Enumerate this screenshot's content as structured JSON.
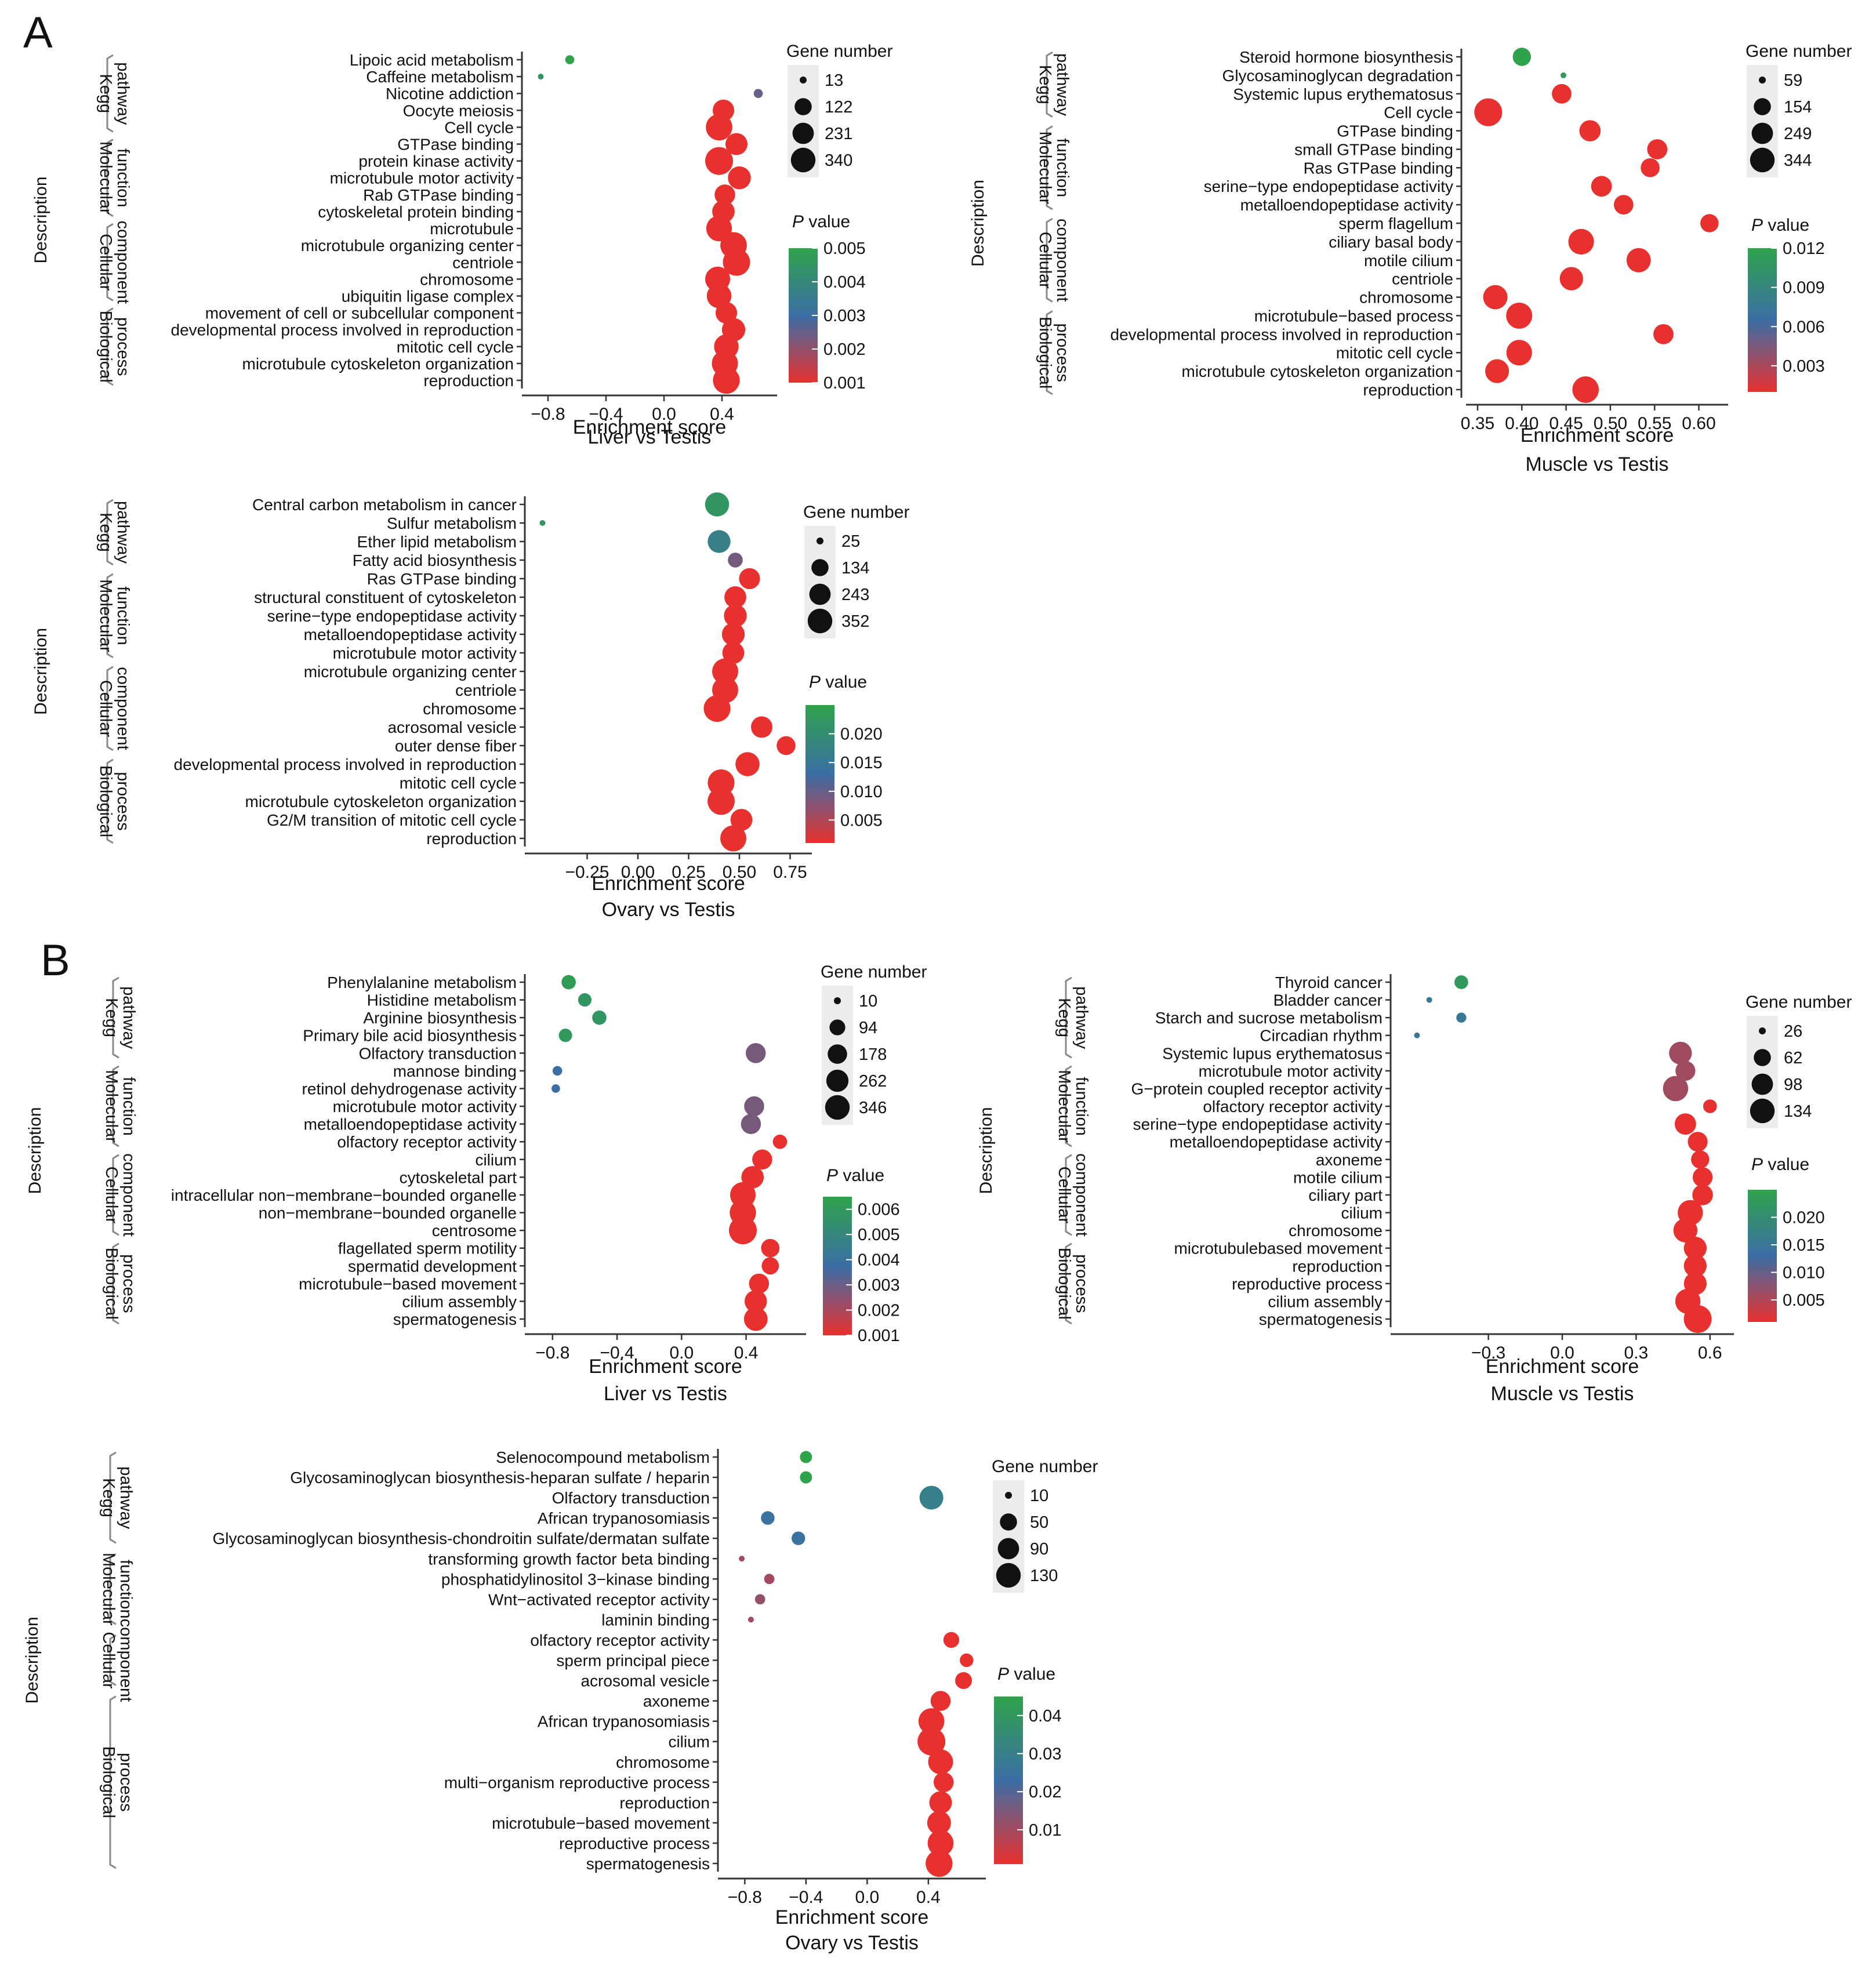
{
  "figure": {
    "section_labels": [
      "A",
      "B"
    ],
    "description_label": "Description",
    "x_axis_label": "Enrichment score",
    "size_legend_title": "Gene number",
    "color_legend_title_italic": "P",
    "color_legend_title_rest": " value",
    "group_names": [
      [
        "Kegg",
        "pathway"
      ],
      [
        "Molecular",
        "function"
      ],
      [
        "Cellular",
        "component"
      ],
      [
        "Biological",
        "process"
      ]
    ],
    "colors": {
      "low_p": "#e8312f",
      "mid_p": "#3b6ea5",
      "high_p": "#2fa34c",
      "axis": "#333333",
      "bracket": "#888888",
      "legend_bg": "#ececec"
    }
  },
  "chart_data": [
    {
      "type": "scatter",
      "id": "A1",
      "title": "Liver vs Testis",
      "xlabel": "Enrichment score",
      "xlim": [
        -0.9,
        0.7
      ],
      "xticks": [
        -0.8,
        -0.4,
        0.0,
        0.4
      ],
      "xtick_labels": [
        "−0.8",
        "−0.4",
        "0.0",
        "0.4"
      ],
      "categories": [
        "Lipoic acid metabolism",
        "Caffeine metabolism",
        "Nicotine addiction",
        "Oocyte meiosis",
        "Cell cycle",
        "GTPase binding",
        "protein kinase activity",
        "microtubule motor activity",
        "Rab GTPase binding",
        "cytoskeletal protein binding",
        "microtubule",
        "microtubule organizing center",
        "centriole",
        "chromosome",
        "ubiquitin ligase complex",
        "movement of cell or subcellular component",
        "developmental process involved in reproduction",
        "mitotic cell cycle",
        "microtubule cytoskeleton organization",
        "reproduction"
      ],
      "groups": [
        5,
        5,
        5,
        5
      ],
      "x": [
        -0.65,
        -0.85,
        0.65,
        0.41,
        0.38,
        0.5,
        0.38,
        0.52,
        0.42,
        0.41,
        0.38,
        0.48,
        0.5,
        0.37,
        0.38,
        0.43,
        0.48,
        0.43,
        0.42,
        0.43
      ],
      "gene_number": [
        20,
        13,
        20,
        180,
        300,
        190,
        340,
        210,
        160,
        200,
        280,
        300,
        320,
        260,
        250,
        180,
        220,
        250,
        290,
        310
      ],
      "p_value": [
        0.005,
        0.0045,
        0.0025,
        0.001,
        0.001,
        0.001,
        0.001,
        0.001,
        0.001,
        0.001,
        0.001,
        0.001,
        0.001,
        0.001,
        0.001,
        0.001,
        0.001,
        0.001,
        0.001,
        0.001
      ],
      "size_legend": {
        "values": [
          13,
          122,
          231,
          340
        ],
        "labels": [
          "13",
          "122",
          "231",
          "340"
        ]
      },
      "color_legend": {
        "range": [
          0.001,
          0.005
        ],
        "ticks": [
          0.005,
          0.004,
          0.003,
          0.002,
          0.001
        ],
        "labels": [
          "0.005",
          "0.004",
          "0.003",
          "0.002",
          "0.001"
        ]
      }
    },
    {
      "type": "scatter",
      "id": "A2",
      "title": "Muscle vs Testis",
      "xlabel": "Enrichment score",
      "xlim": [
        0.35,
        0.62
      ],
      "xticks": [
        0.35,
        0.4,
        0.45,
        0.5,
        0.55,
        0.6
      ],
      "xtick_labels": [
        "0.35",
        "0.40",
        "0.45",
        "0.50",
        "0.55",
        "0.60"
      ],
      "categories": [
        "Steroid hormone biosynthesis",
        "Glycosaminoglycan degradation",
        "Systemic lupus erythematosus",
        "Cell cycle",
        "GTPase binding",
        "small GTPase binding",
        "Ras GTPase binding",
        "serine−type endopeptidase activity",
        "metalloendopeptidase activity",
        "sperm flagellum",
        "ciliary basal body",
        "motile cilium",
        "centriole",
        "chromosome",
        "microtubule−based process",
        "developmental process involved in reproduction",
        "mitotic cell cycle",
        "microtubule cytoskeleton organization",
        "reproduction"
      ],
      "groups": [
        4,
        5,
        5,
        5
      ],
      "x": [
        0.4,
        0.447,
        0.445,
        0.362,
        0.477,
        0.553,
        0.545,
        0.49,
        0.515,
        0.612,
        0.467,
        0.532,
        0.456,
        0.37,
        0.397,
        0.56,
        0.397,
        0.372,
        0.472
      ],
      "gene_number": [
        150,
        59,
        170,
        344,
        200,
        180,
        160,
        190,
        170,
        150,
        290,
        260,
        240,
        260,
        300,
        180,
        290,
        250,
        310
      ],
      "p_value": [
        0.012,
        0.011,
        0.001,
        0.001,
        0.001,
        0.001,
        0.001,
        0.001,
        0.001,
        0.001,
        0.001,
        0.001,
        0.001,
        0.001,
        0.001,
        0.001,
        0.001,
        0.001,
        0.001
      ],
      "size_legend": {
        "values": [
          59,
          154,
          249,
          344
        ],
        "labels": [
          "59",
          "154",
          "249",
          "344"
        ]
      },
      "color_legend": {
        "range": [
          0.001,
          0.012
        ],
        "ticks": [
          0.012,
          0.009,
          0.006,
          0.003
        ],
        "labels": [
          "0.012",
          "0.009",
          "0.006",
          "0.003"
        ]
      }
    },
    {
      "type": "scatter",
      "id": "A3",
      "title": "Ovary vs Testis",
      "xlabel": "Enrichment score",
      "xlim": [
        -0.5,
        0.8
      ],
      "xticks": [
        -0.25,
        0.0,
        0.25,
        0.5,
        0.75
      ],
      "xtick_labels": [
        "−0.25",
        "0.00",
        "0.25",
        "0.50",
        "0.75"
      ],
      "categories": [
        "Central carbon metabolism in cancer",
        "Sulfur metabolism",
        "Ether lipid metabolism",
        "Fatty acid biosynthesis",
        "Ras GTPase binding",
        "structural constituent of cytoskeleton",
        "serine−type endopeptidase activity",
        "metalloendopeptidase activity",
        "microtubule motor activity",
        "microtubule organizing center",
        "centriole",
        "chromosome",
        "acrosomal vesicle",
        "outer dense fiber",
        "developmental process involved in reproduction",
        "mitotic cell cycle",
        "microtubule cytoskeleton organization",
        "G2/M transition of mitotic cell cycle",
        "reproduction"
      ],
      "groups": [
        4,
        5,
        5,
        5
      ],
      "x": [
        0.39,
        -0.47,
        0.4,
        0.48,
        0.55,
        0.48,
        0.48,
        0.47,
        0.47,
        0.43,
        0.43,
        0.39,
        0.61,
        0.73,
        0.54,
        0.41,
        0.41,
        0.51,
        0.47
      ],
      "gene_number": [
        250,
        25,
        220,
        80,
        180,
        200,
        220,
        220,
        200,
        300,
        300,
        320,
        190,
        140,
        250,
        320,
        330,
        200,
        300
      ],
      "p_value": [
        0.022,
        0.022,
        0.017,
        0.009,
        0.001,
        0.001,
        0.001,
        0.001,
        0.001,
        0.001,
        0.001,
        0.001,
        0.001,
        0.001,
        0.001,
        0.001,
        0.001,
        0.001,
        0.001
      ],
      "size_legend": {
        "values": [
          25,
          134,
          243,
          352
        ],
        "labels": [
          "25",
          "134",
          "243",
          "352"
        ]
      },
      "color_legend": {
        "range": [
          0.001,
          0.025
        ],
        "ticks": [
          0.02,
          0.015,
          0.01,
          0.005
        ],
        "labels": [
          "0.020",
          "0.015",
          "0.010",
          "0.005"
        ]
      }
    },
    {
      "type": "scatter",
      "id": "B1",
      "title": "Liver vs Testis",
      "xlabel": "Enrichment score",
      "xlim": [
        -0.9,
        0.7
      ],
      "xticks": [
        -0.8,
        -0.4,
        0.0,
        0.4
      ],
      "xtick_labels": [
        "−0.8",
        "−0.4",
        "0.0",
        "0.4"
      ],
      "categories": [
        "Phenylalanine metabolism",
        "Histidine metabolism",
        "Arginine biosynthesis",
        "Primary bile acid biosynthesis",
        "Olfactory transduction",
        "mannose binding",
        "retinol dehydrogenase activity",
        "microtubule motor activity",
        "metalloendopeptidase activity",
        "olfactory receptor activity",
        "cilium",
        "cytoskeletal part",
        "intracellular non−membrane−bounded organelle",
        "non−membrane−bounded organelle",
        "centrosome",
        "flagellated sperm motility",
        "spermatid development",
        "microtubule−based movement",
        "cilium assembly",
        "spermatogenesis"
      ],
      "groups": [
        5,
        5,
        5,
        5
      ],
      "x": [
        -0.7,
        -0.6,
        -0.51,
        -0.72,
        0.46,
        -0.77,
        -0.78,
        0.45,
        0.43,
        0.61,
        0.5,
        0.44,
        0.38,
        0.38,
        0.38,
        0.55,
        0.55,
        0.48,
        0.46,
        0.46
      ],
      "gene_number": [
        60,
        50,
        60,
        50,
        150,
        20,
        15,
        150,
        150,
        60,
        150,
        200,
        280,
        300,
        346,
        120,
        100,
        150,
        200,
        230
      ],
      "p_value": [
        0.0062,
        0.0058,
        0.0058,
        0.006,
        0.0028,
        0.0038,
        0.0038,
        0.0028,
        0.0028,
        0.001,
        0.001,
        0.001,
        0.001,
        0.001,
        0.001,
        0.001,
        0.001,
        0.001,
        0.001,
        0.001
      ],
      "size_legend": {
        "values": [
          10,
          94,
          178,
          262,
          346
        ],
        "labels": [
          "10",
          "94",
          "178",
          "262",
          "346"
        ]
      },
      "color_legend": {
        "range": [
          0.001,
          0.0065
        ],
        "ticks": [
          0.006,
          0.005,
          0.004,
          0.003,
          0.002,
          0.001
        ],
        "labels": [
          "0.006",
          "0.005",
          "0.004",
          "0.003",
          "0.002",
          "0.001"
        ]
      }
    },
    {
      "type": "scatter",
      "id": "B2",
      "title": "Muscle vs Testis",
      "xlabel": "Enrichment score",
      "xlim": [
        -0.65,
        0.65
      ],
      "xticks": [
        -0.3,
        0.0,
        0.3,
        0.6
      ],
      "xtick_labels": [
        "−0.3",
        "0.0",
        "0.3",
        "0.6"
      ],
      "categories": [
        "Thyroid cancer",
        "Bladder cancer",
        "Starch and sucrose metabolism",
        "Circadian rhythm",
        "Systemic lupus erythematosus",
        "microtubule motor activity",
        "G−protein coupled receptor activity",
        "olfactory receptor activity",
        "serine−type endopeptidase activity",
        "metalloendopeptidase activity",
        "axoneme",
        "motile cilium",
        "ciliary part",
        "cilium",
        "chromosome",
        "microtubulebased movement",
        "reproduction",
        "reproductive process",
        "cilium assembly",
        "spermatogenesis"
      ],
      "groups": [
        5,
        5,
        5,
        5
      ],
      "x": [
        -0.41,
        -0.54,
        -0.41,
        -0.59,
        0.48,
        0.5,
        0.46,
        0.6,
        0.5,
        0.55,
        0.56,
        0.57,
        0.57,
        0.52,
        0.5,
        0.54,
        0.54,
        0.54,
        0.51,
        0.55
      ],
      "gene_number": [
        40,
        26,
        30,
        26,
        90,
        70,
        110,
        40,
        80,
        70,
        60,
        70,
        75,
        110,
        100,
        90,
        90,
        90,
        110,
        134
      ],
      "p_value": [
        0.023,
        0.015,
        0.015,
        0.015,
        0.006,
        0.006,
        0.006,
        0.001,
        0.001,
        0.001,
        0.001,
        0.001,
        0.001,
        0.001,
        0.001,
        0.001,
        0.001,
        0.001,
        0.001,
        0.001
      ],
      "size_legend": {
        "values": [
          26,
          62,
          98,
          134
        ],
        "labels": [
          "26",
          "62",
          "98",
          "134"
        ]
      },
      "color_legend": {
        "range": [
          0.001,
          0.025
        ],
        "ticks": [
          0.02,
          0.015,
          0.01,
          0.005
        ],
        "labels": [
          "0.020",
          "0.015",
          "0.010",
          "0.005"
        ]
      }
    },
    {
      "type": "scatter",
      "id": "B3",
      "title": "Ovary vs Testis",
      "xlabel": "Enrichment score",
      "xlim": [
        -0.9,
        0.7
      ],
      "xticks": [
        -0.8,
        -0.4,
        0.0,
        0.4
      ],
      "xtick_labels": [
        "−0.8",
        "−0.4",
        "0.0",
        "0.4"
      ],
      "categories": [
        "Selenocompound metabolism",
        "Glycosaminoglycan biosynthesis-heparan sulfate / heparin",
        "Olfactory transduction",
        "African trypanosomiasis",
        "Glycosaminoglycan biosynthesis-chondroitin sulfate/dermatan sulfate",
        "transforming growth factor beta binding",
        "phosphatidylinositol 3−kinase binding",
        "Wnt−activated receptor activity",
        "laminin binding",
        "olfactory receptor activity",
        "sperm principal piece",
        "acrosomal vesicle",
        "axoneme",
        "African trypanosomiasis",
        "cilium",
        "chromosome",
        "multi−organism reproductive process",
        "reproduction",
        "microtubule−based movement",
        "reproductive process",
        "spermatogenesis"
      ],
      "groups": [
        5,
        4,
        3,
        9
      ],
      "x": [
        -0.4,
        -0.4,
        0.42,
        -0.65,
        -0.45,
        -0.82,
        -0.64,
        -0.7,
        -0.76,
        0.55,
        0.65,
        0.63,
        0.48,
        0.42,
        0.42,
        0.48,
        0.5,
        0.48,
        0.47,
        0.48,
        0.47
      ],
      "gene_number": [
        20,
        20,
        90,
        25,
        25,
        10,
        15,
        15,
        10,
        35,
        25,
        40,
        60,
        110,
        130,
        100,
        60,
        80,
        90,
        110,
        120
      ],
      "p_value": [
        0.045,
        0.045,
        0.03,
        0.025,
        0.025,
        0.01,
        0.01,
        0.012,
        0.01,
        0.001,
        0.001,
        0.001,
        0.001,
        0.001,
        0.001,
        0.001,
        0.001,
        0.001,
        0.001,
        0.001,
        0.001
      ],
      "size_legend": {
        "values": [
          10,
          50,
          90,
          130
        ],
        "labels": [
          "10",
          "50",
          "90",
          "130"
        ]
      },
      "color_legend": {
        "range": [
          0.001,
          0.045
        ],
        "ticks": [
          0.04,
          0.03,
          0.02,
          0.01
        ],
        "labels": [
          "0.04",
          "0.03",
          "0.02",
          "0.01"
        ]
      }
    }
  ]
}
